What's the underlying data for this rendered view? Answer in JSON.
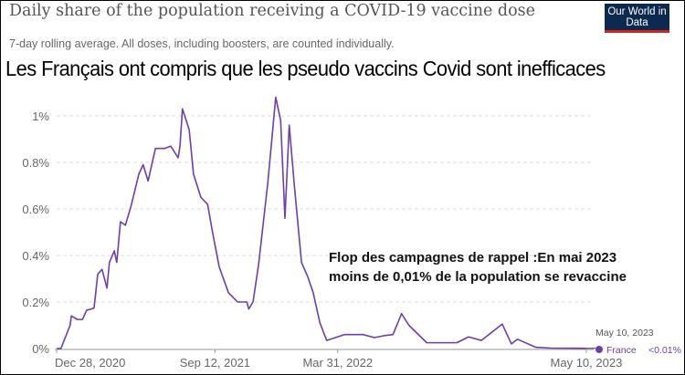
{
  "header": {
    "title": "Daily share of the population receiving a COVID-19 vaccine dose",
    "subtitle": "7-day rolling average. All doses, including boosters, are counted individually.",
    "logo_text": "Our World in Data",
    "headline": "Les Français ont compris que les pseudo vaccins Covid sont inefficaces",
    "annotation_line1": "Flop des campagnes de rappel :En mai 2023",
    "annotation_line2": "moins de 0,01% de la population se revaccine"
  },
  "colors": {
    "line": "#6d3fa6",
    "grid": "#dddddd",
    "logo_bg": "#0c2a4f",
    "logo_bar": "#ce261e"
  },
  "chart_data": {
    "type": "line",
    "title": "Daily share of the population receiving a COVID-19 vaccine dose",
    "xlabel": "",
    "ylabel": "",
    "x_unit": "days since Dec 28, 2020",
    "xlim": [
      -3,
      870
    ],
    "ylim": [
      0,
      1.1
    ],
    "grid": true,
    "y_ticks": [
      {
        "v": 0,
        "label": "0%"
      },
      {
        "v": 0.2,
        "label": "0.2%"
      },
      {
        "v": 0.4,
        "label": "0.4%"
      },
      {
        "v": 0.6,
        "label": "0.6%"
      },
      {
        "v": 0.8,
        "label": "0.8%"
      },
      {
        "v": 1,
        "label": "1%"
      }
    ],
    "x_ticks": [
      {
        "v": 0,
        "label": "Dec 28, 2020"
      },
      {
        "v": 258,
        "label": "Sep 12, 2021"
      },
      {
        "v": 458,
        "label": "Mar 31, 2022"
      },
      {
        "v": 863,
        "label": "May 10, 2023"
      }
    ],
    "series": [
      {
        "name": "France",
        "end_label": "May 10, 2023",
        "end_value": "<0.01%",
        "x": [
          -3,
          7,
          22,
          24,
          34,
          42,
          49,
          57,
          61,
          67,
          74,
          82,
          86,
          94,
          98,
          104,
          112,
          121,
          134,
          141,
          149,
          161,
          176,
          186,
          198,
          201,
          205,
          216,
          223,
          235,
          246,
          254,
          265,
          280,
          295,
          310,
          313,
          320,
          329,
          344,
          357,
          365,
          372,
          379,
          387,
          399,
          409,
          418,
          429,
          440,
          469,
          499,
          518,
          533,
          548,
          562,
          574,
          603,
          652,
          671,
          692,
          726,
          741,
          751,
          781,
          805,
          863
        ],
        "y": [
          0,
          0,
          0.1,
          0.14,
          0.125,
          0.125,
          0.165,
          0.17,
          0.175,
          0.32,
          0.34,
          0.26,
          0.37,
          0.42,
          0.37,
          0.545,
          0.53,
          0.61,
          0.75,
          0.79,
          0.72,
          0.86,
          0.86,
          0.87,
          0.82,
          0.87,
          1.03,
          0.94,
          0.75,
          0.65,
          0.62,
          0.5,
          0.35,
          0.24,
          0.2,
          0.2,
          0.17,
          0.2,
          0.36,
          0.71,
          1.08,
          0.98,
          0.56,
          0.96,
          0.71,
          0.37,
          0.31,
          0.24,
          0.11,
          0.035,
          0.06,
          0.06,
          0.047,
          0.055,
          0.06,
          0.15,
          0.1,
          0.025,
          0.025,
          0.05,
          0.035,
          0.105,
          0.02,
          0.04,
          0.005,
          0.002,
          0.001
        ]
      }
    ]
  }
}
